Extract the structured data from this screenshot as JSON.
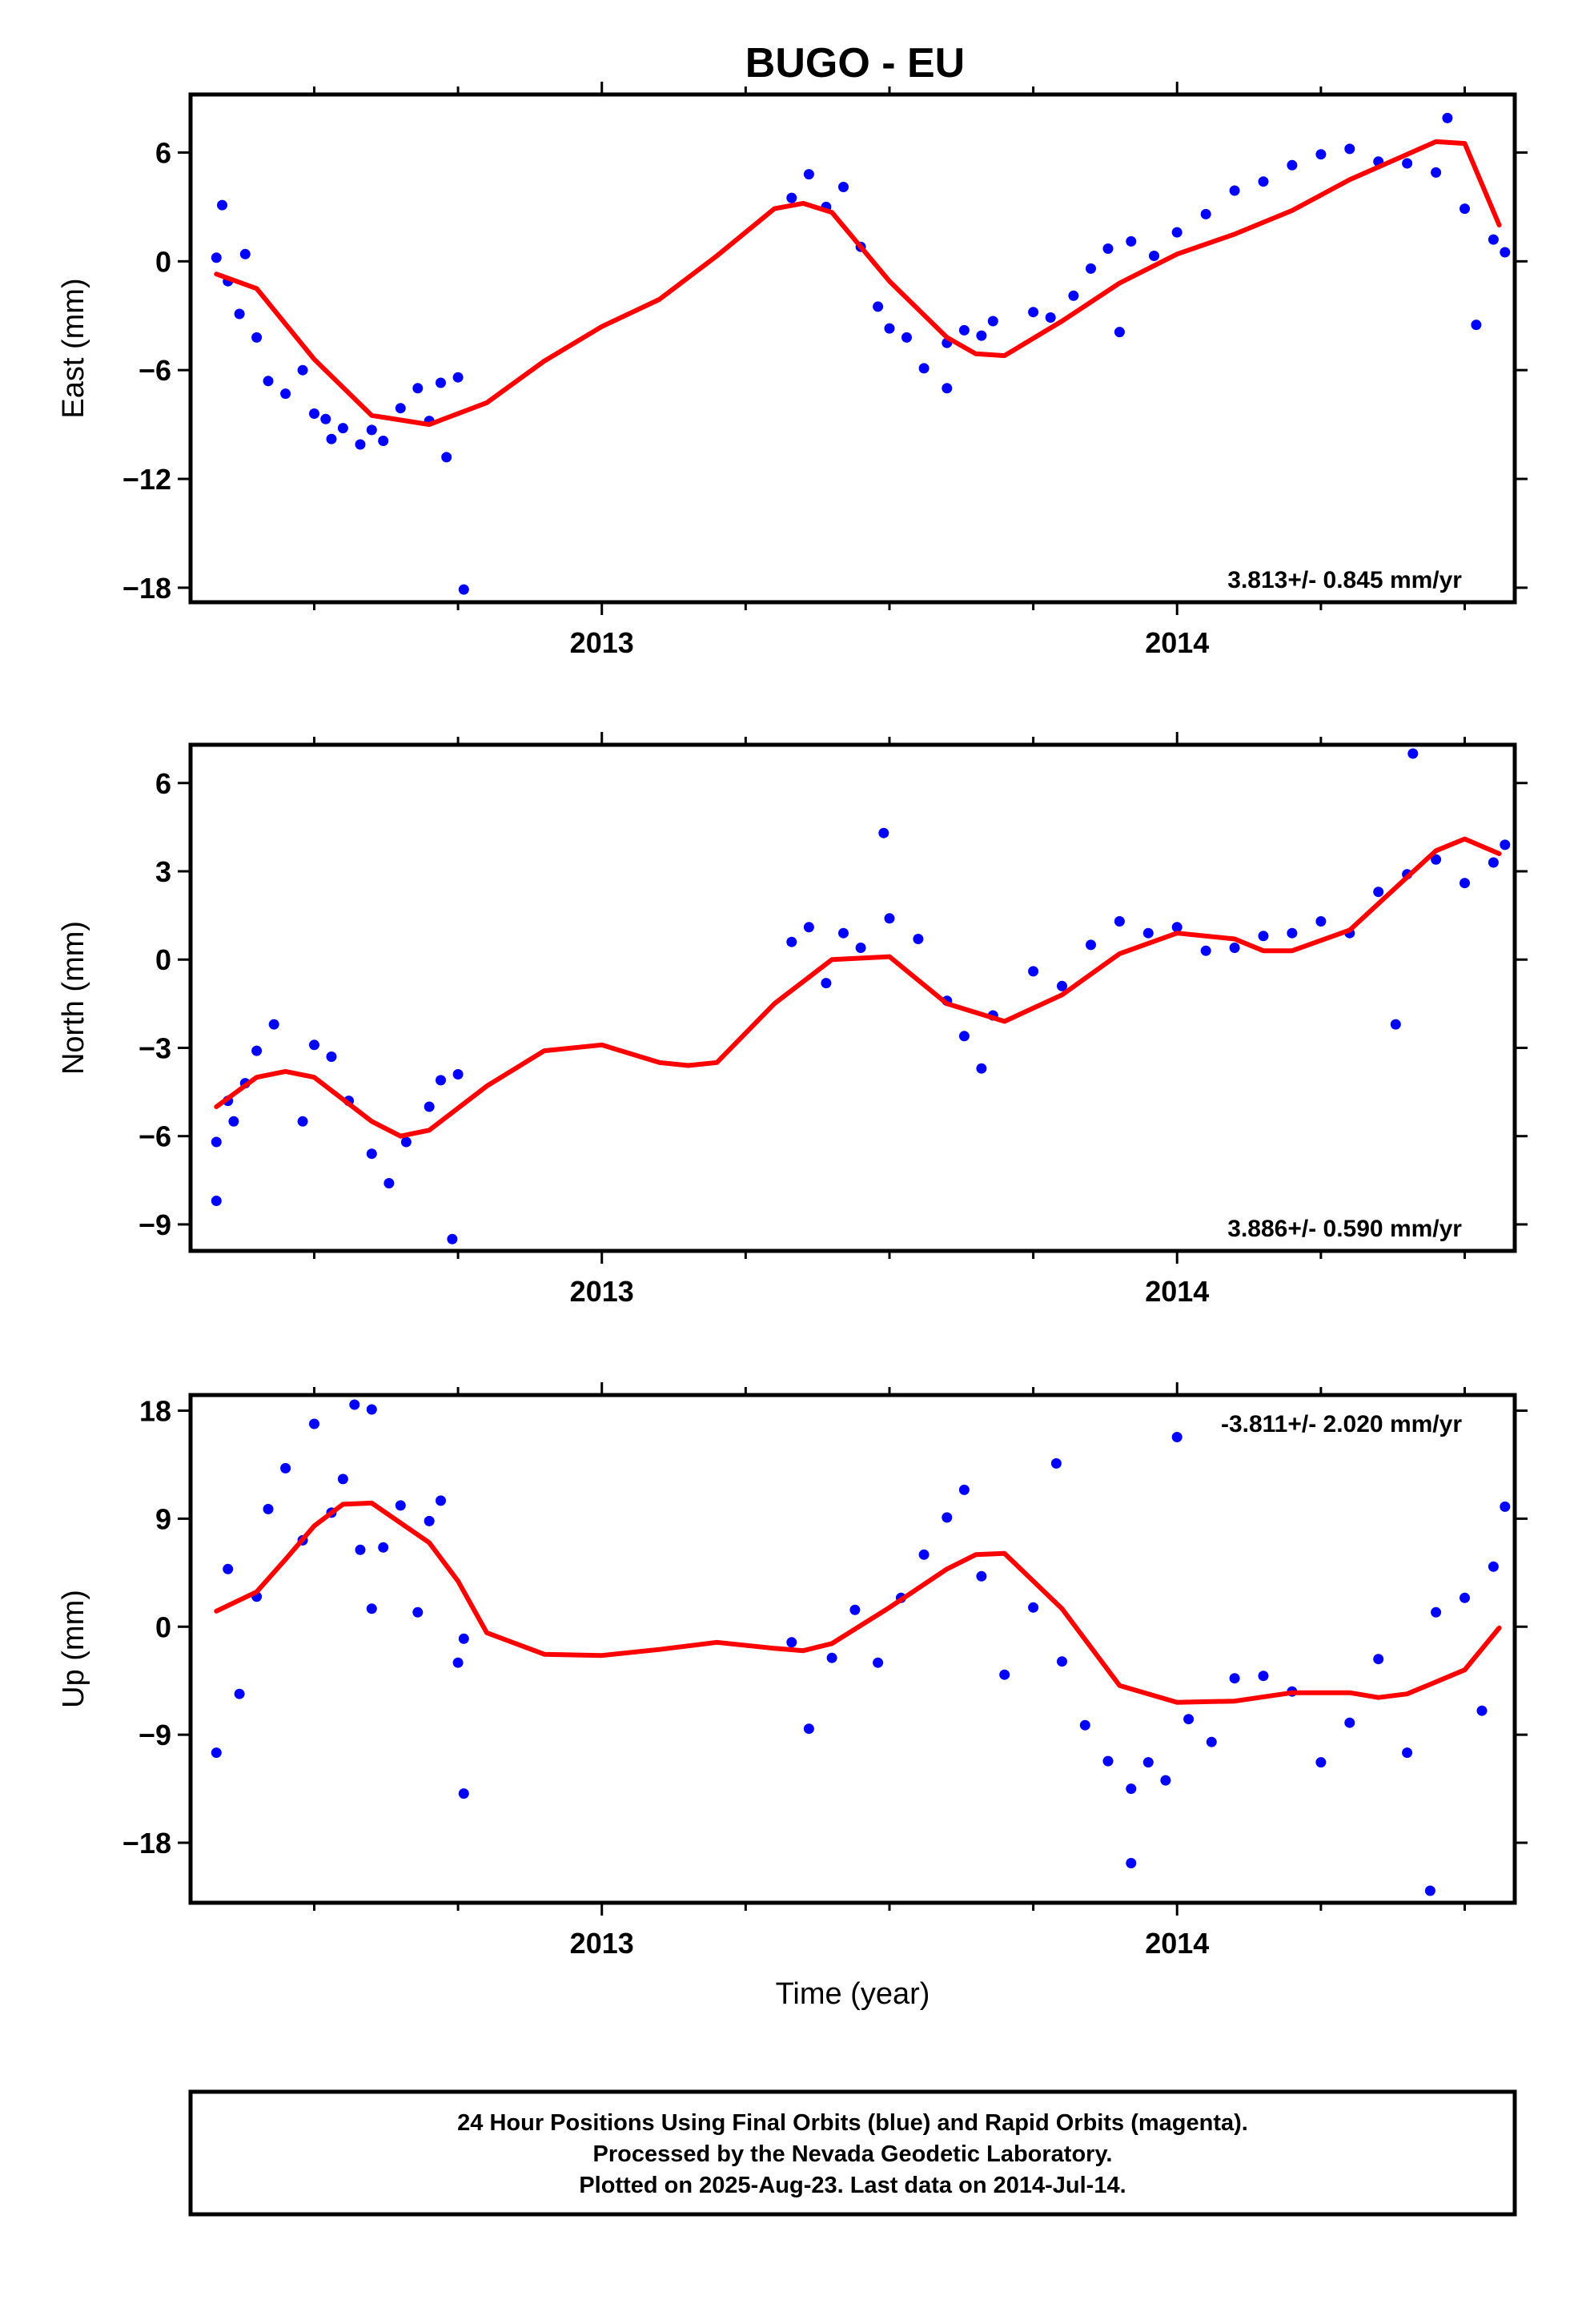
{
  "chart_data": [
    {
      "type": "scatter",
      "title": "BUGO - EU",
      "xlabel": "",
      "ylabel": "East (mm)",
      "xlim": [
        2012.285,
        2014.587
      ],
      "ylim": [
        -18.8,
        9.2
      ],
      "yticks": [
        6,
        0,
        -6,
        -12,
        -18
      ],
      "ytick_labels": [
        "6",
        "0",
        "−6",
        "−12",
        "−18"
      ],
      "xticks": [
        2013,
        2014
      ],
      "xtick_labels": [
        "2013",
        "2014"
      ],
      "annotation": "3.813+/- 0.845 mm/yr",
      "annotation_position": "bottom-right",
      "grid": false,
      "series": [
        {
          "color": "#0000ff",
          "kind": "scatter",
          "x": [
            2012.33,
            2012.35,
            2012.38,
            2012.4,
            2012.42,
            2012.45,
            2012.48,
            2012.5,
            2012.52,
            2012.55,
            2012.58,
            2012.6,
            2012.62,
            2012.65,
            2012.68,
            2012.7,
            2012.72,
            2012.75,
            2012.76,
            2013.33,
            2013.36,
            2013.39,
            2013.42,
            2013.45,
            2013.48,
            2013.5,
            2013.53,
            2013.56,
            2013.6,
            2013.63,
            2013.66,
            2013.68,
            2013.75,
            2013.78,
            2013.82,
            2013.85,
            2013.88,
            2013.92,
            2013.96,
            2014.0,
            2014.05,
            2014.1,
            2014.15,
            2014.2,
            2014.25,
            2014.3,
            2014.35,
            2014.4,
            2014.45,
            2014.5,
            2014.55,
            2014.57,
            2012.34,
            2012.37,
            2012.53,
            2012.73,
            2013.6,
            2013.9,
            2014.47,
            2014.52
          ],
          "y": [
            0.2,
            -1.1,
            0.4,
            -4.2,
            -6.6,
            -7.3,
            -6.0,
            -8.4,
            -8.7,
            -9.2,
            -10.1,
            -9.3,
            -9.9,
            -8.1,
            -7.0,
            -8.8,
            -6.7,
            -6.4,
            -18.1,
            3.5,
            4.8,
            3.0,
            4.1,
            0.8,
            -2.5,
            -3.7,
            -4.2,
            -5.9,
            -4.5,
            -3.8,
            -4.1,
            -3.3,
            -2.8,
            -3.1,
            -1.9,
            -0.4,
            0.7,
            1.1,
            0.3,
            1.6,
            2.6,
            3.9,
            4.4,
            5.3,
            5.9,
            6.2,
            5.5,
            5.4,
            4.9,
            2.9,
            1.2,
            0.5,
            3.1,
            -2.9,
            -9.8,
            -10.8,
            -7.0,
            -3.9,
            7.9,
            -3.5
          ]
        },
        {
          "color": "#ff0000",
          "kind": "line",
          "x": [
            2012.33,
            2012.4,
            2012.5,
            2012.6,
            2012.7,
            2012.8,
            2012.9,
            2013.0,
            2013.1,
            2013.2,
            2013.3,
            2013.35,
            2013.4,
            2013.5,
            2013.6,
            2013.65,
            2013.7,
            2013.8,
            2013.9,
            2014.0,
            2014.1,
            2014.2,
            2014.3,
            2014.4,
            2014.45,
            2014.5,
            2014.56
          ],
          "y": [
            -0.7,
            -1.5,
            -5.4,
            -8.5,
            -9.0,
            -7.8,
            -5.5,
            -3.6,
            -2.1,
            0.3,
            2.9,
            3.2,
            2.7,
            -1.1,
            -4.2,
            -5.1,
            -5.2,
            -3.3,
            -1.2,
            0.4,
            1.5,
            2.8,
            4.5,
            5.9,
            6.6,
            6.5,
            2.0
          ]
        }
      ]
    },
    {
      "type": "scatter",
      "xlabel": "",
      "ylabel": "North (mm)",
      "xlim": [
        2012.285,
        2014.587
      ],
      "ylim": [
        -9.9,
        7.3
      ],
      "yticks": [
        6,
        3,
        0,
        -3,
        -6,
        -9
      ],
      "ytick_labels": [
        "6",
        "3",
        "0",
        "−3",
        "−6",
        "−9"
      ],
      "xticks": [
        2013,
        2014
      ],
      "xtick_labels": [
        "2013",
        "2014"
      ],
      "annotation": "3.886+/- 0.590 mm/yr",
      "annotation_position": "bottom-right",
      "grid": false,
      "series": [
        {
          "color": "#0000ff",
          "kind": "scatter",
          "x": [
            2012.33,
            2012.35,
            2012.38,
            2012.4,
            2012.43,
            2012.48,
            2012.5,
            2012.53,
            2012.56,
            2012.6,
            2012.63,
            2012.66,
            2012.7,
            2012.72,
            2012.75,
            2012.33,
            2012.36,
            2013.33,
            2013.36,
            2013.39,
            2013.42,
            2013.45,
            2013.5,
            2013.55,
            2013.6,
            2013.63,
            2013.66,
            2013.68,
            2013.75,
            2013.8,
            2013.85,
            2013.9,
            2013.95,
            2014.0,
            2014.05,
            2014.1,
            2014.15,
            2014.2,
            2014.25,
            2014.3,
            2014.35,
            2014.4,
            2014.45,
            2014.5,
            2014.55,
            2014.57,
            2012.74,
            2013.49,
            2014.41,
            2014.38
          ],
          "y": [
            -6.2,
            -4.8,
            -4.2,
            -3.1,
            -2.2,
            -5.5,
            -2.9,
            -3.3,
            -4.8,
            -6.6,
            -7.6,
            -6.2,
            -5.0,
            -4.1,
            -3.9,
            -8.2,
            -5.5,
            0.6,
            1.1,
            -0.8,
            0.9,
            0.4,
            1.4,
            0.7,
            -1.4,
            -2.6,
            -3.7,
            -1.9,
            -0.4,
            -0.9,
            0.5,
            1.3,
            0.9,
            1.1,
            0.3,
            0.4,
            0.8,
            0.9,
            1.3,
            0.9,
            2.3,
            2.9,
            3.4,
            2.6,
            3.3,
            3.9,
            -9.5,
            4.3,
            7.0,
            -2.2
          ]
        },
        {
          "color": "#ff0000",
          "kind": "line",
          "x": [
            2012.33,
            2012.4,
            2012.45,
            2012.5,
            2012.6,
            2012.65,
            2012.7,
            2012.8,
            2012.9,
            2013.0,
            2013.1,
            2013.15,
            2013.2,
            2013.3,
            2013.4,
            2013.5,
            2013.6,
            2013.7,
            2013.8,
            2013.9,
            2014.0,
            2014.1,
            2014.15,
            2014.2,
            2014.3,
            2014.4,
            2014.45,
            2014.5,
            2014.56
          ],
          "y": [
            -5.0,
            -4.0,
            -3.8,
            -4.0,
            -5.5,
            -6.0,
            -5.8,
            -4.3,
            -3.1,
            -2.9,
            -3.5,
            -3.6,
            -3.5,
            -1.5,
            0.0,
            0.1,
            -1.5,
            -2.1,
            -1.2,
            0.2,
            0.9,
            0.7,
            0.3,
            0.3,
            1.0,
            2.8,
            3.7,
            4.1,
            3.6
          ]
        }
      ]
    },
    {
      "type": "scatter",
      "xlabel": "Time (year)",
      "ylabel": "Up (mm)",
      "xlim": [
        2012.285,
        2014.587
      ],
      "ylim": [
        -23.0,
        19.3
      ],
      "yticks": [
        18,
        9,
        0,
        -9,
        -18
      ],
      "ytick_labels": [
        "18",
        "9",
        "0",
        "−9",
        "−18"
      ],
      "xticks": [
        2013,
        2014
      ],
      "xtick_labels": [
        "2013",
        "2014"
      ],
      "annotation": "-3.811+/- 2.020 mm/yr",
      "annotation_position": "top-right",
      "grid": false,
      "series": [
        {
          "color": "#0000ff",
          "kind": "scatter",
          "x": [
            2012.33,
            2012.35,
            2012.37,
            2012.4,
            2012.42,
            2012.45,
            2012.48,
            2012.5,
            2012.53,
            2012.55,
            2012.58,
            2012.6,
            2012.62,
            2012.65,
            2012.68,
            2012.7,
            2012.72,
            2012.75,
            2012.76,
            2013.33,
            2013.36,
            2013.4,
            2013.44,
            2013.48,
            2013.52,
            2013.56,
            2013.6,
            2013.63,
            2013.66,
            2013.7,
            2013.75,
            2013.8,
            2013.84,
            2013.88,
            2013.92,
            2013.95,
            2013.98,
            2014.02,
            2014.06,
            2014.1,
            2014.15,
            2014.2,
            2014.25,
            2014.3,
            2014.35,
            2014.4,
            2014.45,
            2014.5,
            2014.53,
            2014.55,
            2014.57,
            2012.57,
            2012.6,
            2012.76,
            2014.0,
            2014.44,
            2013.92,
            2013.79
          ],
          "y": [
            -10.5,
            4.8,
            -5.6,
            2.5,
            9.8,
            13.2,
            7.2,
            16.9,
            9.5,
            12.3,
            6.4,
            18.1,
            6.6,
            10.1,
            1.2,
            8.8,
            10.5,
            -3.0,
            -13.9,
            -1.3,
            -8.5,
            -2.6,
            1.4,
            -3.0,
            2.4,
            6.0,
            9.1,
            11.4,
            4.2,
            -4.0,
            1.6,
            -2.9,
            -8.2,
            -11.2,
            -13.5,
            -11.3,
            -12.8,
            -7.7,
            -9.6,
            -4.3,
            -4.1,
            -5.4,
            -11.3,
            -8.0,
            -2.7,
            -10.5,
            1.2,
            2.4,
            -7.0,
            5.0,
            10.0,
            18.5,
            1.5,
            -1.0,
            15.8,
            -22.0,
            -19.7,
            13.6
          ]
        },
        {
          "color": "#ff0000",
          "kind": "line",
          "x": [
            2012.33,
            2012.4,
            2012.45,
            2012.5,
            2012.55,
            2012.6,
            2012.7,
            2012.75,
            2012.8,
            2012.9,
            2013.0,
            2013.1,
            2013.2,
            2013.3,
            2013.35,
            2013.4,
            2013.5,
            2013.6,
            2013.65,
            2013.7,
            2013.8,
            2013.9,
            2014.0,
            2014.1,
            2014.2,
            2014.3,
            2014.35,
            2014.4,
            2014.5,
            2014.56
          ],
          "y": [
            1.3,
            2.9,
            5.6,
            8.4,
            10.2,
            10.3,
            7.0,
            3.8,
            -0.5,
            -2.3,
            -2.4,
            -1.9,
            -1.3,
            -1.8,
            -2.0,
            -1.4,
            1.6,
            4.8,
            6.0,
            6.1,
            1.5,
            -4.9,
            -6.3,
            -6.2,
            -5.5,
            -5.5,
            -5.9,
            -5.6,
            -3.6,
            -0.1
          ]
        }
      ]
    }
  ],
  "footer": {
    "line1": "24 Hour Positions Using Final Orbits (blue) and Rapid Orbits (magenta).",
    "line2": "Processed by the Nevada Geodetic Laboratory.",
    "line3": "Plotted on 2025-Aug-23. Last data on 2014-Jul-14."
  },
  "colors": {
    "data": "#0000ff",
    "model": "#ff0000",
    "frame": "#000000"
  }
}
